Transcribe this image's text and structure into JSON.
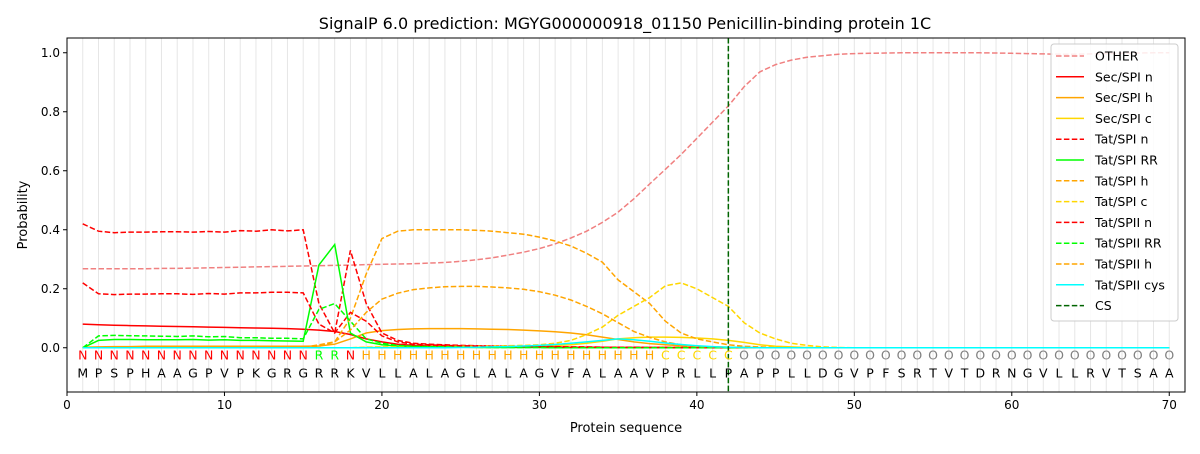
{
  "chart_data": {
    "type": "line",
    "title": "SignalP 6.0 prediction: MGYG000000918_01150 Penicillin-binding protein 1C",
    "xlabel": "Protein sequence",
    "ylabel": "Probability",
    "xlim": [
      0,
      71
    ],
    "ylim": [
      -0.15,
      1.05
    ],
    "xticks": [
      0,
      10,
      20,
      30,
      40,
      50,
      60,
      70
    ],
    "yticks": [
      0.0,
      0.2,
      0.4,
      0.6,
      0.8,
      1.0
    ],
    "legend_position": "top-right",
    "grid": "vertical lines at every residue",
    "cleavage_site": {
      "name": "CS",
      "x": 42,
      "color": "#006400"
    },
    "sequence": [
      "M",
      "P",
      "S",
      "P",
      "H",
      "A",
      "A",
      "G",
      "P",
      "V",
      "P",
      "K",
      "G",
      "R",
      "G",
      "R",
      "R",
      "K",
      "V",
      "L",
      "L",
      "A",
      "L",
      "A",
      "G",
      "L",
      "A",
      "L",
      "A",
      "G",
      "V",
      "F",
      "A",
      "L",
      "A",
      "A",
      "V",
      "P",
      "R",
      "L",
      "L",
      "P",
      "A",
      "P",
      "P",
      "L",
      "L",
      "D",
      "G",
      "V",
      "P",
      "F",
      "S",
      "R",
      "T",
      "V",
      "T",
      "D",
      "R",
      "N",
      "G",
      "V",
      "L",
      "L",
      "R",
      "V",
      "T",
      "S",
      "A",
      "A"
    ],
    "region_labels": [
      "N",
      "N",
      "N",
      "N",
      "N",
      "N",
      "N",
      "N",
      "N",
      "N",
      "N",
      "N",
      "N",
      "N",
      "N",
      "R",
      "R",
      "N",
      "H",
      "H",
      "H",
      "H",
      "H",
      "H",
      "H",
      "H",
      "H",
      "H",
      "H",
      "H",
      "H",
      "H",
      "H",
      "H",
      "H",
      "H",
      "H",
      "C",
      "C",
      "C",
      "C",
      "C",
      "O",
      "O",
      "O",
      "O",
      "O",
      "O",
      "O",
      "O",
      "O",
      "O",
      "O",
      "O",
      "O",
      "O",
      "O",
      "O",
      "O",
      "O",
      "O",
      "O",
      "O",
      "O",
      "O",
      "O",
      "O",
      "O",
      "O",
      "O"
    ],
    "region_colors": {
      "N": "#ff0000",
      "R": "#00ff00",
      "H": "#ffa500",
      "C": "#ffd700",
      "O": "#808080"
    },
    "x": [
      1,
      2,
      3,
      4,
      5,
      6,
      7,
      8,
      9,
      10,
      11,
      12,
      13,
      14,
      15,
      16,
      17,
      18,
      19,
      20,
      21,
      22,
      23,
      24,
      25,
      26,
      27,
      28,
      29,
      30,
      31,
      32,
      33,
      34,
      35,
      36,
      37,
      38,
      39,
      40,
      41,
      42,
      43,
      44,
      45,
      46,
      47,
      48,
      49,
      50,
      51,
      52,
      53,
      54,
      55,
      56,
      57,
      58,
      59,
      60,
      61,
      62,
      63,
      64,
      65,
      66,
      67,
      68,
      69,
      70
    ],
    "series": [
      {
        "name": "OTHER",
        "color": "#f08080",
        "dash": true,
        "values": [
          0.268,
          0.268,
          0.268,
          0.268,
          0.268,
          0.269,
          0.269,
          0.27,
          0.271,
          0.272,
          0.273,
          0.274,
          0.275,
          0.276,
          0.277,
          0.278,
          0.279,
          0.28,
          0.282,
          0.283,
          0.284,
          0.285,
          0.287,
          0.289,
          0.293,
          0.298,
          0.305,
          0.314,
          0.324,
          0.336,
          0.352,
          0.372,
          0.395,
          0.425,
          0.46,
          0.505,
          0.555,
          0.605,
          0.655,
          0.71,
          0.765,
          0.82,
          0.885,
          0.935,
          0.96,
          0.975,
          0.985,
          0.99,
          0.995,
          0.997,
          0.998,
          0.999,
          1,
          1,
          1,
          1,
          1,
          1,
          0.999,
          0.998,
          0.997,
          0.996,
          0.995,
          0.995,
          0.996,
          0.997,
          0.998,
          0.999,
          1,
          1
        ]
      },
      {
        "name": "Sec/SPI n",
        "color": "#ff0000",
        "dash": false,
        "values": [
          0.08,
          0.078,
          0.076,
          0.075,
          0.074,
          0.073,
          0.072,
          0.071,
          0.07,
          0.069,
          0.068,
          0.067,
          0.066,
          0.065,
          0.063,
          0.06,
          0.055,
          0.045,
          0.03,
          0.02,
          0.012,
          0.008,
          0.006,
          0.005,
          0.004,
          0.003,
          0.003,
          0.002,
          0.002,
          0.002,
          0.001,
          0.001,
          0.001,
          0.001,
          0.001,
          0.001,
          0.001,
          0.001,
          0.001,
          0.001,
          0,
          0,
          0,
          0,
          0,
          0,
          0,
          0,
          0,
          0,
          0,
          0,
          0,
          0,
          0,
          0,
          0,
          0,
          0,
          0,
          0,
          0,
          0,
          0,
          0,
          0,
          0,
          0,
          0,
          0
        ]
      },
      {
        "name": "Sec/SPI h",
        "color": "#ffa500",
        "dash": false,
        "values": [
          0.002,
          0.003,
          0.004,
          0.004,
          0.005,
          0.005,
          0.005,
          0.005,
          0.005,
          0.005,
          0.005,
          0.005,
          0.005,
          0.005,
          0.005,
          0.006,
          0.012,
          0.03,
          0.05,
          0.058,
          0.062,
          0.064,
          0.065,
          0.065,
          0.065,
          0.064,
          0.063,
          0.062,
          0.06,
          0.057,
          0.054,
          0.05,
          0.044,
          0.036,
          0.028,
          0.02,
          0.014,
          0.01,
          0.007,
          0.005,
          0.003,
          0.002,
          0.001,
          0,
          0,
          0,
          0,
          0,
          0,
          0,
          0,
          0,
          0,
          0,
          0,
          0,
          0,
          0,
          0,
          0,
          0,
          0,
          0,
          0,
          0,
          0,
          0,
          0,
          0,
          0
        ]
      },
      {
        "name": "Sec/SPI c",
        "color": "#ffd700",
        "dash": false,
        "values": [
          0,
          0,
          0,
          0,
          0,
          0,
          0,
          0,
          0,
          0,
          0,
          0,
          0,
          0,
          0,
          0,
          0,
          0,
          0.001,
          0.001,
          0.001,
          0.001,
          0.001,
          0.002,
          0.002,
          0.002,
          0.003,
          0.004,
          0.005,
          0.006,
          0.008,
          0.01,
          0.015,
          0.022,
          0.03,
          0.034,
          0.036,
          0.036,
          0.035,
          0.033,
          0.03,
          0.025,
          0.018,
          0.01,
          0.005,
          0.003,
          0.001,
          0,
          0,
          0,
          0,
          0,
          0,
          0,
          0,
          0,
          0,
          0,
          0,
          0,
          0,
          0,
          0,
          0,
          0,
          0,
          0,
          0,
          0,
          0
        ]
      },
      {
        "name": "Tat/SPI n",
        "color": "#ff0000",
        "dash": true,
        "values": [
          0.42,
          0.395,
          0.39,
          0.392,
          0.392,
          0.393,
          0.393,
          0.392,
          0.394,
          0.392,
          0.397,
          0.395,
          0.4,
          0.396,
          0.4,
          0.15,
          0.05,
          0.33,
          0.15,
          0.05,
          0.025,
          0.015,
          0.012,
          0.01,
          0.008,
          0.007,
          0.006,
          0.005,
          0.005,
          0.004,
          0.004,
          0.003,
          0.003,
          0.002,
          0.002,
          0.002,
          0.001,
          0.001,
          0.001,
          0.001,
          0,
          0,
          0,
          0,
          0,
          0,
          0,
          0,
          0,
          0,
          0,
          0,
          0,
          0,
          0,
          0,
          0,
          0,
          0,
          0,
          0,
          0,
          0,
          0,
          0,
          0,
          0,
          0,
          0,
          0
        ]
      },
      {
        "name": "Tat/SPI RR",
        "color": "#00ff00",
        "dash": false,
        "values": [
          0,
          0.025,
          0.028,
          0.028,
          0.027,
          0.027,
          0.027,
          0.028,
          0.026,
          0.027,
          0.025,
          0.025,
          0.024,
          0.023,
          0.022,
          0.28,
          0.35,
          0.05,
          0.02,
          0.01,
          0.006,
          0.004,
          0.003,
          0.002,
          0.002,
          0.001,
          0.001,
          0.001,
          0.001,
          0.001,
          0,
          0,
          0,
          0,
          0,
          0,
          0,
          0,
          0,
          0,
          0,
          0,
          0,
          0,
          0,
          0,
          0,
          0,
          0,
          0,
          0,
          0,
          0,
          0,
          0,
          0,
          0,
          0,
          0,
          0,
          0,
          0,
          0,
          0,
          0,
          0,
          0,
          0,
          0,
          0
        ]
      },
      {
        "name": "Tat/SPI h",
        "color": "#ffa500",
        "dash": true,
        "values": [
          0,
          0,
          0,
          0,
          0,
          0,
          0,
          0,
          0,
          0,
          0,
          0,
          0,
          0,
          0.001,
          0.01,
          0.02,
          0.1,
          0.25,
          0.37,
          0.395,
          0.4,
          0.4,
          0.4,
          0.4,
          0.398,
          0.395,
          0.39,
          0.385,
          0.375,
          0.362,
          0.345,
          0.32,
          0.29,
          0.23,
          0.19,
          0.15,
          0.09,
          0.05,
          0.03,
          0.02,
          0.01,
          0.005,
          0.003,
          0.001,
          0,
          0,
          0,
          0,
          0,
          0,
          0,
          0,
          0,
          0,
          0,
          0,
          0,
          0,
          0,
          0,
          0,
          0,
          0,
          0,
          0,
          0,
          0,
          0,
          0
        ]
      },
      {
        "name": "Tat/SPI c",
        "color": "#ffd700",
        "dash": true,
        "values": [
          0,
          0,
          0,
          0,
          0,
          0,
          0,
          0,
          0,
          0,
          0,
          0,
          0,
          0,
          0,
          0,
          0,
          0,
          0.002,
          0.003,
          0.003,
          0.003,
          0.004,
          0.004,
          0.005,
          0.005,
          0.006,
          0.007,
          0.008,
          0.01,
          0.015,
          0.025,
          0.045,
          0.07,
          0.11,
          0.14,
          0.17,
          0.21,
          0.22,
          0.2,
          0.17,
          0.14,
          0.085,
          0.05,
          0.03,
          0.015,
          0.008,
          0.003,
          0.001,
          0,
          0,
          0,
          0,
          0,
          0,
          0,
          0,
          0,
          0,
          0,
          0,
          0,
          0,
          0,
          0,
          0,
          0,
          0,
          0,
          0
        ]
      },
      {
        "name": "Tat/SPII n",
        "color": "#ff0000",
        "dash": true,
        "values": [
          0.22,
          0.183,
          0.18,
          0.182,
          0.182,
          0.183,
          0.183,
          0.181,
          0.184,
          0.182,
          0.186,
          0.186,
          0.188,
          0.188,
          0.186,
          0.08,
          0.05,
          0.12,
          0.09,
          0.04,
          0.02,
          0.012,
          0.01,
          0.008,
          0.007,
          0.006,
          0.005,
          0.004,
          0.004,
          0.003,
          0.003,
          0.002,
          0.002,
          0.002,
          0.001,
          0.001,
          0.001,
          0.001,
          0,
          0,
          0,
          0,
          0,
          0,
          0,
          0,
          0,
          0,
          0,
          0,
          0,
          0,
          0,
          0,
          0,
          0,
          0,
          0,
          0,
          0,
          0,
          0,
          0,
          0,
          0,
          0,
          0,
          0,
          0,
          0
        ]
      },
      {
        "name": "Tat/SPII RR",
        "color": "#00ff00",
        "dash": true,
        "values": [
          0,
          0.04,
          0.042,
          0.041,
          0.04,
          0.039,
          0.038,
          0.04,
          0.037,
          0.038,
          0.034,
          0.034,
          0.032,
          0.032,
          0.03,
          0.13,
          0.15,
          0.09,
          0.03,
          0.015,
          0.008,
          0.005,
          0.004,
          0.003,
          0.002,
          0.002,
          0.001,
          0.001,
          0.001,
          0.001,
          0,
          0,
          0,
          0,
          0,
          0,
          0,
          0,
          0,
          0,
          0,
          0,
          0,
          0,
          0,
          0,
          0,
          0,
          0,
          0,
          0,
          0,
          0,
          0,
          0,
          0,
          0,
          0,
          0,
          0,
          0,
          0,
          0,
          0,
          0,
          0,
          0,
          0,
          0,
          0
        ]
      },
      {
        "name": "Tat/SPII h",
        "color": "#ffa500",
        "dash": true,
        "values": [
          0,
          0,
          0,
          0,
          0,
          0,
          0,
          0,
          0,
          0,
          0,
          0,
          0,
          0,
          0,
          0.005,
          0.02,
          0.06,
          0.12,
          0.165,
          0.185,
          0.197,
          0.203,
          0.207,
          0.208,
          0.208,
          0.206,
          0.203,
          0.198,
          0.19,
          0.178,
          0.162,
          0.14,
          0.115,
          0.085,
          0.055,
          0.035,
          0.02,
          0.01,
          0.005,
          0.003,
          0.002,
          0.001,
          0,
          0,
          0,
          0,
          0,
          0,
          0,
          0,
          0,
          0,
          0,
          0,
          0,
          0,
          0,
          0,
          0,
          0,
          0,
          0,
          0,
          0,
          0,
          0,
          0,
          0,
          0
        ]
      },
      {
        "name": "Tat/SPII cys",
        "color": "#00ffff",
        "dash": false,
        "values": [
          0,
          0,
          0,
          0,
          0,
          0,
          0,
          0,
          0,
          0,
          0,
          0,
          0,
          0,
          0,
          0,
          0,
          0,
          0,
          0,
          0,
          0,
          0,
          0,
          0.001,
          0.002,
          0.003,
          0.004,
          0.006,
          0.008,
          0.011,
          0.015,
          0.02,
          0.025,
          0.03,
          0.027,
          0.022,
          0.016,
          0.011,
          0.007,
          0.004,
          0.002,
          0.001,
          0,
          0,
          0,
          0,
          0,
          0,
          0,
          0,
          0,
          0,
          0,
          0,
          0,
          0,
          0,
          0,
          0,
          0,
          0,
          0,
          0,
          0,
          0,
          0,
          0,
          0,
          0
        ]
      }
    ]
  }
}
